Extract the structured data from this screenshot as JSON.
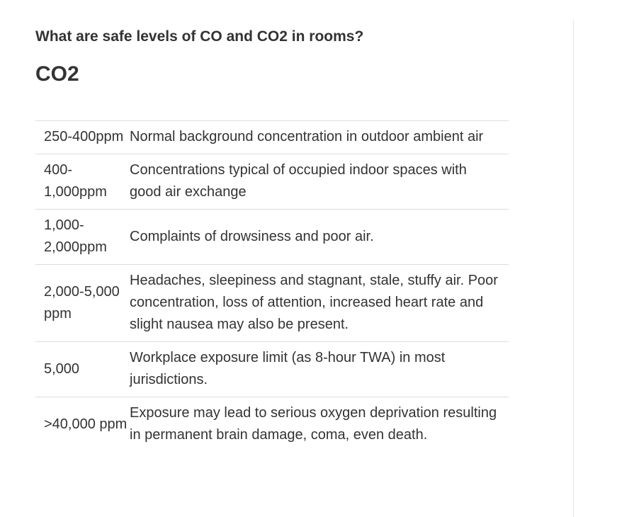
{
  "question": "What are safe levels of CO and CO2 in rooms?",
  "section_heading": "CO2",
  "levels": [
    {
      "range": "250-400ppm",
      "description": "Normal background concentration in outdoor ambient air"
    },
    {
      "range": "400-1,000ppm",
      "description": "Concentrations typical of occupied indoor spaces with good air exchange"
    },
    {
      "range": "1,000-2,000ppm",
      "description": "Complaints of drowsiness and poor air."
    },
    {
      "range": "2,000-5,000 ppm",
      "description": "Headaches, sleepiness and stagnant, stale, stuffy air. Poor concentration, loss of attention, increased heart rate and slight nausea may also be present."
    },
    {
      "range": "5,000",
      "description": "Workplace exposure limit (as 8-hour TWA) in most jurisdictions."
    },
    {
      "range": ">40,000 ppm",
      "description": "Exposure may lead to serious oxygen deprivation resulting in permanent brain damage, coma, even death."
    }
  ]
}
